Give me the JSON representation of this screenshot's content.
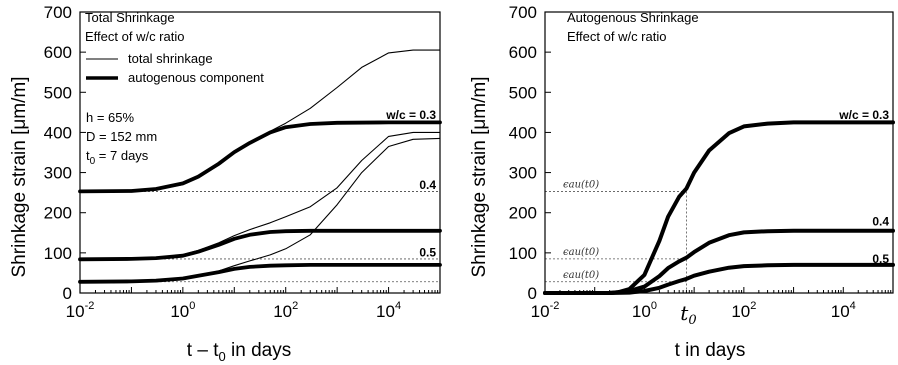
{
  "chart_data": [
    {
      "type": "line",
      "panel": "left",
      "annotation_title": "Total Shrinkage",
      "annotation_subtitle": "Effect of w/c ratio",
      "legend": {
        "total": "total shrinkage",
        "autogenous": "autogenous component"
      },
      "params": {
        "h": "h = 65%",
        "D": "D = 152 mm",
        "t0_prefix": "t",
        "t0_sub": "0",
        "t0_suffix": " = 7 days"
      },
      "ylabel": "Shrinkage strain [μm/m]",
      "xlabel_main": "t – t",
      "xlabel_sub": "0",
      "xlabel_tail": " in days",
      "x_log": true,
      "xlim": [
        0.01,
        100000
      ],
      "ylim": [
        0,
        700
      ],
      "yticks": [
        "0",
        "100",
        "200",
        "300",
        "400",
        "500",
        "600",
        "700"
      ],
      "xtick_exponents": [
        "-2",
        "0",
        "2",
        "4"
      ],
      "series": [
        {
          "name": "w/c = 0.3",
          "kind": "total",
          "x": [
            0.01,
            0.1,
            0.3,
            1,
            2,
            5,
            10,
            20,
            50,
            100,
            300,
            1000,
            3000,
            10000,
            30000,
            100000
          ],
          "y": [
            253,
            253,
            257,
            270,
            287,
            318,
            348,
            373,
            403,
            423,
            460,
            512,
            562,
            598,
            605,
            605
          ]
        },
        {
          "name": "w/c = 0.3",
          "kind": "autogenous",
          "x": [
            0.01,
            0.1,
            0.3,
            1,
            2,
            5,
            10,
            20,
            50,
            100,
            300,
            1000,
            10000,
            100000
          ],
          "y": [
            253,
            254,
            259,
            273,
            290,
            322,
            351,
            374,
            400,
            413,
            421,
            424,
            425,
            425
          ]
        },
        {
          "name": "0.4",
          "kind": "total",
          "x": [
            0.01,
            0.1,
            0.3,
            1,
            2,
            5,
            10,
            20,
            50,
            100,
            300,
            1000,
            3000,
            10000,
            30000,
            100000
          ],
          "y": [
            85,
            86,
            88,
            96,
            106,
            125,
            143,
            158,
            175,
            190,
            215,
            262,
            330,
            390,
            400,
            400
          ]
        },
        {
          "name": "0.4",
          "kind": "autogenous",
          "x": [
            0.01,
            0.1,
            0.3,
            1,
            2,
            5,
            10,
            20,
            50,
            100,
            300,
            1000,
            10000,
            100000
          ],
          "y": [
            84,
            85,
            87,
            93,
            103,
            120,
            135,
            145,
            152,
            154,
            155,
            155,
            155,
            155
          ]
        },
        {
          "name": "0.5",
          "kind": "total",
          "x": [
            0.01,
            0.1,
            0.3,
            1,
            2,
            5,
            10,
            20,
            50,
            100,
            300,
            1000,
            3000,
            10000,
            30000,
            100000
          ],
          "y": [
            28,
            29,
            31,
            37,
            43,
            55,
            68,
            80,
            95,
            110,
            145,
            220,
            300,
            365,
            383,
            385
          ]
        },
        {
          "name": "0.5",
          "kind": "autogenous",
          "x": [
            0.01,
            0.1,
            0.3,
            1,
            2,
            5,
            10,
            20,
            50,
            100,
            300,
            1000,
            10000,
            100000
          ],
          "y": [
            28,
            29,
            31,
            36,
            43,
            52,
            60,
            65,
            68,
            69,
            70,
            70,
            70,
            70
          ]
        }
      ],
      "reference_lines": [
        {
          "label": "",
          "y": 253
        },
        {
          "label": "0.4",
          "y": 253
        },
        {
          "label": "",
          "y": 85
        },
        {
          "label": "0.5",
          "y": 85
        },
        {
          "label": "",
          "y": 28
        }
      ],
      "curve_labels": [
        "w/c = 0.3",
        "0.4",
        "0.5"
      ]
    },
    {
      "type": "line",
      "panel": "right",
      "annotation_title": "Autogenous Shrinkage",
      "annotation_subtitle": "Effect of w/c ratio",
      "ylabel": "Shrinkage strain [μm/m]",
      "xlabel": "t in days",
      "x_log": true,
      "xlim": [
        0.01,
        100000
      ],
      "ylim": [
        0,
        700
      ],
      "yticks": [
        "0",
        "100",
        "200",
        "300",
        "400",
        "500",
        "600",
        "700"
      ],
      "xtick_exponents": [
        "-2",
        "0",
        "2",
        "4"
      ],
      "t0_marker": {
        "x": 7,
        "label": "t",
        "sub": "0"
      },
      "epsilon_label": "ϵau(t0)",
      "series": [
        {
          "name": "w/c = 0.3",
          "x": [
            0.01,
            0.1,
            0.2,
            0.3,
            0.5,
            1,
            2,
            3,
            5,
            7,
            10,
            20,
            50,
            100,
            300,
            1000,
            10000,
            100000
          ],
          "y": [
            0,
            0,
            0,
            2,
            10,
            45,
            130,
            190,
            240,
            260,
            300,
            355,
            398,
            415,
            422,
            425,
            425,
            425
          ]
        },
        {
          "name": "0.4",
          "x": [
            0.01,
            0.1,
            0.2,
            0.5,
            1,
            2,
            3,
            5,
            7,
            10,
            20,
            50,
            100,
            300,
            1000,
            10000,
            100000
          ],
          "y": [
            0,
            0,
            0,
            5,
            16,
            42,
            62,
            79,
            88,
            102,
            125,
            144,
            151,
            154,
            155,
            155,
            155
          ]
        },
        {
          "name": "0.5",
          "x": [
            0.01,
            0.2,
            0.5,
            1,
            2,
            3,
            5,
            7,
            10,
            20,
            50,
            100,
            300,
            1000,
            10000,
            100000
          ],
          "y": [
            0,
            0,
            1,
            5,
            13,
            21,
            30,
            35,
            43,
            53,
            63,
            67,
            69,
            70,
            70,
            70
          ]
        }
      ],
      "epsilon_levels": [
        253,
        85,
        28
      ],
      "curve_labels": [
        "w/c = 0.3",
        "0.4",
        "0.5"
      ]
    }
  ]
}
